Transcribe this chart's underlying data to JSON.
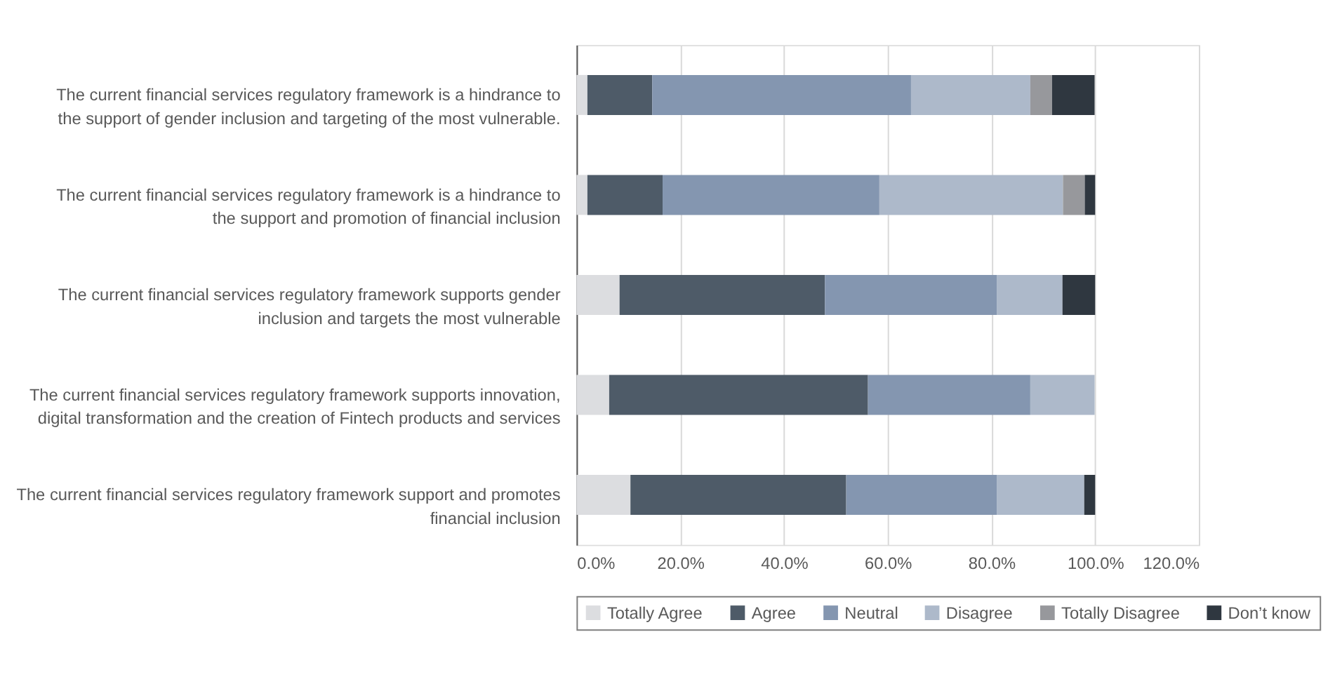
{
  "chart_data": {
    "type": "bar",
    "orientation": "horizontal",
    "stacked": true,
    "categories": [
      "The current financial services regulatory framework is a hindrance to the support of gender inclusion and targeting of the most vulnerable.",
      "The current financial services regulatory framework is a hindrance to the support and promotion of financial inclusion",
      "The current financial services regulatory framework supports gender inclusion and targets the most vulnerable",
      "The current financial services regulatory framework supports innovation, digital transformation and the creation of Fintech products and services",
      "The current financial services regulatory framework support and promotes financial inclusion"
    ],
    "series": [
      {
        "name": "Totally Agree",
        "color": "#dcdde0",
        "values": [
          2.1,
          2.1,
          8.3,
          6.3,
          10.4
        ]
      },
      {
        "name": "Agree",
        "color": "#4e5b68",
        "values": [
          12.5,
          14.5,
          39.6,
          49.9,
          41.6
        ]
      },
      {
        "name": "Neutral",
        "color": "#8496b0",
        "values": [
          49.9,
          41.8,
          33.2,
          31.3,
          29.1
        ]
      },
      {
        "name": "Disagree",
        "color": "#adb9ca",
        "values": [
          23.0,
          35.4,
          12.6,
          12.4,
          16.8
        ]
      },
      {
        "name": "Totally Disagree",
        "color": "#97989c",
        "values": [
          4.2,
          4.2,
          0,
          0,
          0
        ]
      },
      {
        "name": "Don’t know",
        "color": "#2f3740",
        "values": [
          8.2,
          2.0,
          6.3,
          0,
          2.1
        ]
      }
    ],
    "xlim": [
      0,
      120
    ],
    "xticks": [
      {
        "value": 0,
        "label": "0.0%"
      },
      {
        "value": 20,
        "label": "20.0%"
      },
      {
        "value": 40,
        "label": "40.0%"
      },
      {
        "value": 60,
        "label": "60.0%"
      },
      {
        "value": 80,
        "label": "80.0%"
      },
      {
        "value": 100,
        "label": "100.0%"
      },
      {
        "value": 120,
        "label": "120.0%"
      }
    ],
    "grid": "x",
    "legend": "bottom"
  }
}
